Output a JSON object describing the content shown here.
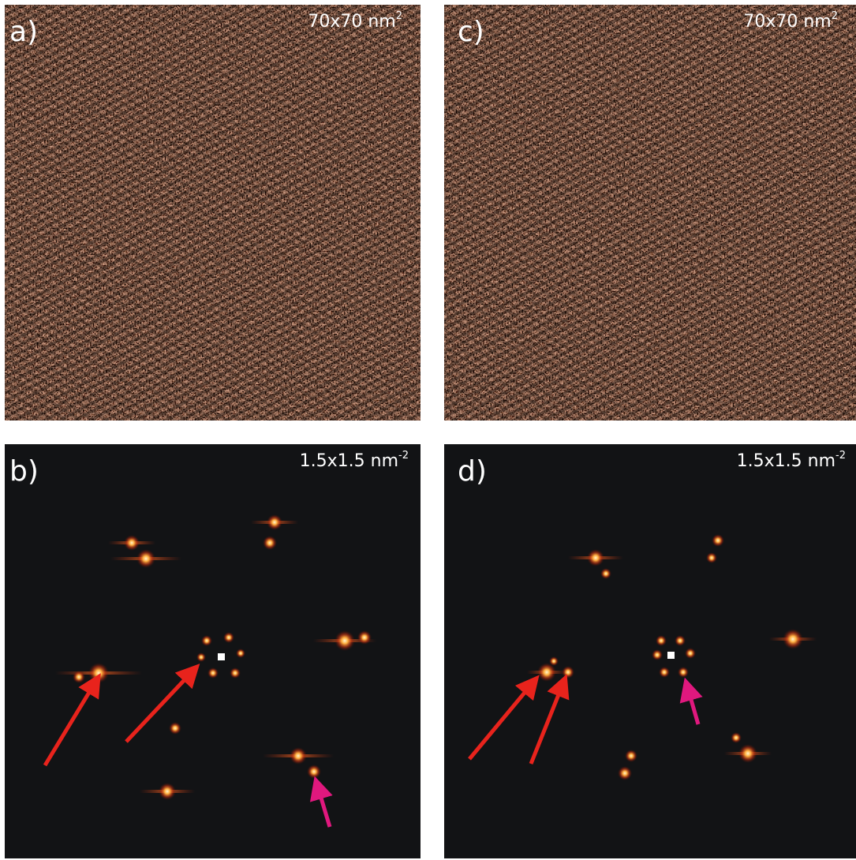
{
  "panels": [
    {
      "label": "a)",
      "scale": "70x70 nm",
      "exponent": "2"
    },
    {
      "label": "c)",
      "scale": "70x70 nm",
      "exponent": "2"
    },
    {
      "label": "b)",
      "scale": "1.5x1.5 nm",
      "exponent": "-2"
    },
    {
      "label": "d)",
      "scale": "1.5x1.5 nm",
      "exponent": "-2"
    }
  ]
}
